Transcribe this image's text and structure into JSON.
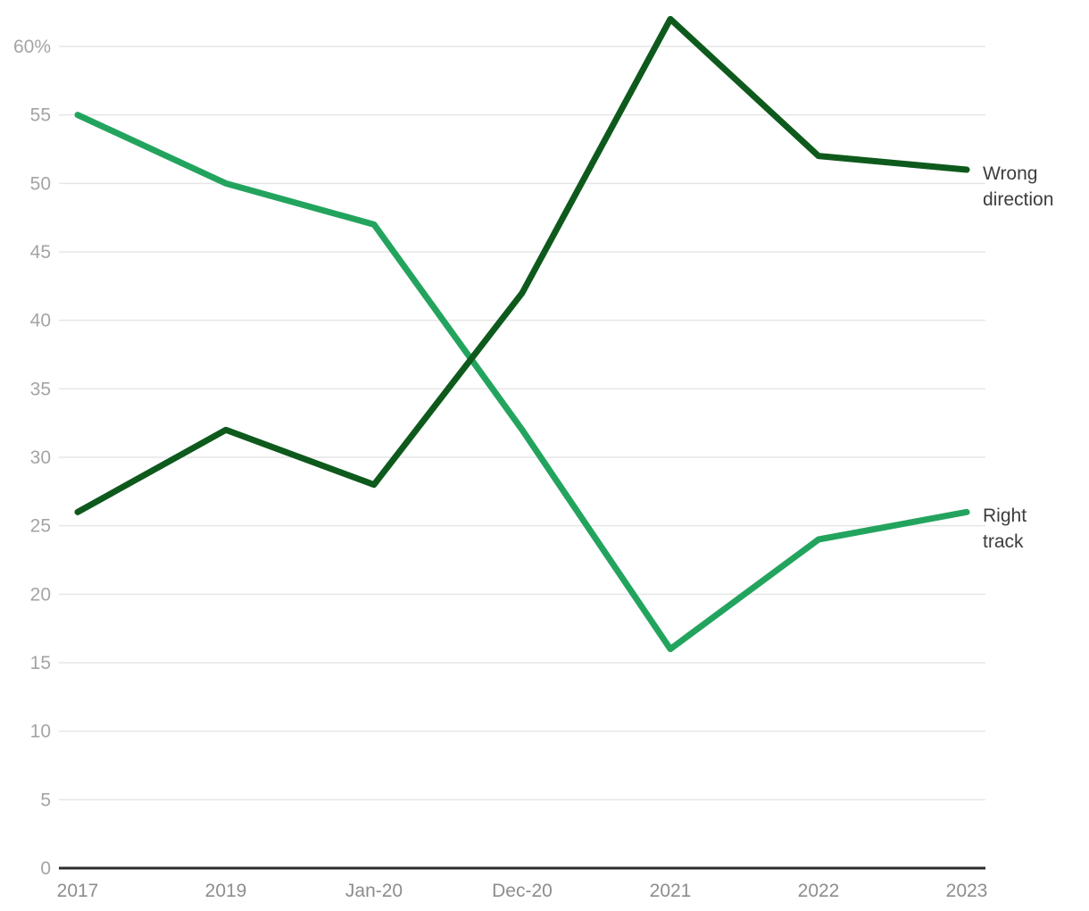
{
  "chart_data": {
    "type": "line",
    "categories": [
      "2017",
      "2019",
      "Jan-20",
      "Dec-20",
      "2021",
      "2022",
      "2023"
    ],
    "series": [
      {
        "name": "Wrong direction",
        "values": [
          26,
          32,
          28,
          42,
          62,
          52,
          51
        ],
        "color": "#0e5a1d"
      },
      {
        "name": "Right track",
        "values": [
          55,
          50,
          47,
          32,
          16,
          24,
          26
        ],
        "color": "#23a45e"
      }
    ],
    "title": "",
    "xlabel": "",
    "ylabel": "",
    "y_ticks": [
      0,
      5,
      10,
      15,
      20,
      25,
      30,
      35,
      40,
      45,
      50,
      55,
      60
    ],
    "y_tick_labels": [
      "0",
      "5",
      "10",
      "15",
      "20",
      "25",
      "30",
      "35",
      "40",
      "45",
      "50",
      "55",
      "60%"
    ],
    "ylim": [
      0,
      62
    ],
    "grid": "horizontal",
    "legend_position": "right-of-line-ends"
  },
  "colors": {
    "background": "#ffffff",
    "gridline": "#e6e6e6",
    "axis_line": "#2d2d2d",
    "y_tick_label": "#a4a4a4",
    "x_tick_label": "#8d8d8d",
    "series_label_text": "#3d3d3d"
  }
}
